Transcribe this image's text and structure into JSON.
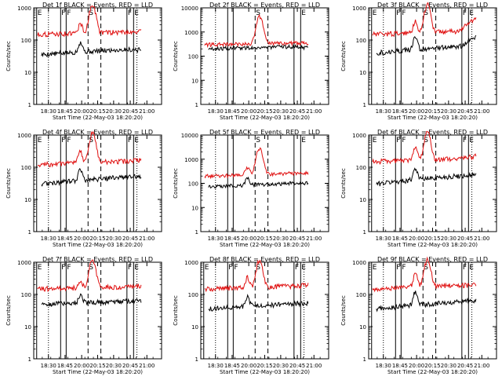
{
  "colors": {
    "black_series": "#000000",
    "red_series": "#e01010",
    "axis": "#000000",
    "background": "#ffffff"
  },
  "chart_data": [
    {
      "type": "line",
      "title": "Det 1f BLACK = Events, RED = LLD",
      "xlabel": "Start Time (22-May-03 18:20:20)",
      "ylabel": "Counts/sec",
      "yscale": "log",
      "ylim": [
        1,
        1000
      ],
      "xlim": [
        "18:20",
        "21:00"
      ],
      "xticks": [
        "18:30",
        "18:45",
        "20:00",
        "20:15",
        "20:30",
        "20:45",
        "21:00"
      ],
      "yticks": [
        "1",
        "10",
        "100",
        "1000"
      ],
      "markers": [
        {
          "label": "E",
          "time": "18:22",
          "style": "solid"
        },
        {
          "label": "",
          "time": "18:30",
          "style": "dotted"
        },
        {
          "label": "F",
          "time": "18:41",
          "style": "solid"
        },
        {
          "label": "F",
          "time": "18:50",
          "style": "solid"
        },
        {
          "label": "S",
          "time": "20:06",
          "style": "dashed"
        },
        {
          "label": "",
          "time": "20:18",
          "style": "dashed"
        },
        {
          "label": "F",
          "time": "20:42",
          "style": "solid"
        },
        {
          "label": "E",
          "time": "20:48",
          "style": "solid"
        },
        {
          "label": "",
          "time": "20:51",
          "style": "dotted"
        }
      ],
      "series": [
        {
          "color": "black",
          "baseline": 35,
          "rise": 40,
          "bump": 1.0,
          "peak": 0,
          "end": 30
        },
        {
          "color": "red",
          "baseline": 150,
          "rise": 70,
          "bump": 1.0,
          "peak": 1100,
          "end": 150
        }
      ]
    },
    {
      "type": "line",
      "title": "Det 2f BLACK = Events, RED = LLD",
      "xlabel": "Start Time (22-May-03 18:20:20)",
      "ylabel": "Counts/sec",
      "yscale": "log",
      "ylim": [
        1,
        10000
      ],
      "xlim": [
        "18:20",
        "21:00"
      ],
      "xticks": [
        "18:30",
        "18:45",
        "20:00",
        "20:15",
        "20:30",
        "20:45",
        "21:00"
      ],
      "yticks": [
        "1",
        "10",
        "100",
        "1000",
        "10000"
      ],
      "markers": [
        {
          "label": "",
          "time": "18:30",
          "style": "dotted"
        },
        {
          "label": "",
          "time": "18:41",
          "style": "solid"
        },
        {
          "label": "",
          "time": "18:50",
          "style": "solid"
        },
        {
          "label": "S",
          "time": "20:06",
          "style": "dashed"
        },
        {
          "label": "",
          "time": "20:18",
          "style": "dashed"
        },
        {
          "label": "",
          "time": "20:42",
          "style": "solid"
        },
        {
          "label": "E",
          "time": "20:48",
          "style": "solid"
        }
      ],
      "series": [
        {
          "color": "black",
          "baseline": 200,
          "rise": 120,
          "bump": 0,
          "peak": 0,
          "end": 150
        },
        {
          "color": "red",
          "baseline": 300,
          "rise": 120,
          "bump": 0,
          "peak": 4000,
          "end": 280
        }
      ]
    },
    {
      "type": "line",
      "title": "Det 3f BLACK = Events, RED = LLD",
      "xlabel": "Start Time (22-May-03 18:20:20)",
      "ylabel": "Counts/sec",
      "yscale": "log",
      "ylim": [
        1,
        1000
      ],
      "xlim": [
        "18:20",
        "21:00"
      ],
      "xticks": [
        "18:30",
        "18:45",
        "20:00",
        "20:15",
        "20:30",
        "20:45",
        "21:00"
      ],
      "yticks": [
        "1",
        "10",
        "100",
        "1000"
      ],
      "markers": [
        {
          "label": "E",
          "time": "18:22",
          "style": "solid"
        },
        {
          "label": "",
          "time": "18:30",
          "style": "dotted"
        },
        {
          "label": "F",
          "time": "18:41",
          "style": "solid"
        },
        {
          "label": "F",
          "time": "18:50",
          "style": "solid"
        },
        {
          "label": "S",
          "time": "20:06",
          "style": "dashed"
        },
        {
          "label": "",
          "time": "20:18",
          "style": "dashed"
        },
        {
          "label": "F",
          "time": "20:42",
          "style": "solid"
        },
        {
          "label": "E",
          "time": "20:48",
          "style": "solid"
        },
        {
          "label": "",
          "time": "20:51",
          "style": "dotted"
        }
      ],
      "series": [
        {
          "color": "black",
          "baseline": 40,
          "rise": 60,
          "bump": 1.3,
          "peak": 0,
          "end": 100
        },
        {
          "color": "red",
          "baseline": 150,
          "rise": 100,
          "bump": 1.3,
          "peak": 1100,
          "end": 600
        }
      ]
    },
    {
      "type": "line",
      "title": "Det 4f BLACK = Events, RED = LLD",
      "xlabel": "Start Time (22-May-03 18:20:20)",
      "ylabel": "Counts/sec",
      "yscale": "log",
      "ylim": [
        1,
        1000
      ],
      "xlim": [
        "18:20",
        "21:00"
      ],
      "xticks": [
        "18:30",
        "18:45",
        "20:00",
        "20:15",
        "20:30",
        "20:45",
        "21:00"
      ],
      "yticks": [
        "1",
        "10",
        "100",
        "1000"
      ],
      "markers": [
        {
          "label": "E",
          "time": "18:22",
          "style": "solid"
        },
        {
          "label": "",
          "time": "18:30",
          "style": "dotted"
        },
        {
          "label": "F",
          "time": "18:41",
          "style": "solid"
        },
        {
          "label": "F",
          "time": "18:50",
          "style": "solid"
        },
        {
          "label": "S",
          "time": "20:06",
          "style": "dashed"
        },
        {
          "label": "",
          "time": "20:18",
          "style": "dashed"
        },
        {
          "label": "F",
          "time": "20:42",
          "style": "solid"
        },
        {
          "label": "E",
          "time": "20:48",
          "style": "solid"
        },
        {
          "label": "",
          "time": "20:51",
          "style": "dotted"
        }
      ],
      "series": [
        {
          "color": "black",
          "baseline": 30,
          "rise": 50,
          "bump": 1.2,
          "peak": 0,
          "end": 30
        },
        {
          "color": "red",
          "baseline": 120,
          "rise": 90,
          "bump": 1.2,
          "peak": 1000,
          "end": 120
        }
      ]
    },
    {
      "type": "line",
      "title": "Det 5f BLACK = Events, RED = LLD",
      "xlabel": "Start Time (22-May-03 18:20:20)",
      "ylabel": "Counts/sec",
      "yscale": "log",
      "ylim": [
        1,
        10000
      ],
      "xlim": [
        "18:20",
        "21:00"
      ],
      "xticks": [
        "18:30",
        "18:45",
        "20:00",
        "20:15",
        "20:30",
        "20:45",
        "21:00"
      ],
      "yticks": [
        "1",
        "10",
        "100",
        "1000",
        "10000"
      ],
      "markers": [
        {
          "label": "",
          "time": "18:30",
          "style": "dotted"
        },
        {
          "label": "",
          "time": "18:41",
          "style": "solid"
        },
        {
          "label": "",
          "time": "18:50",
          "style": "solid"
        },
        {
          "label": "S",
          "time": "20:06",
          "style": "dashed"
        },
        {
          "label": "",
          "time": "20:18",
          "style": "dashed"
        },
        {
          "label": "",
          "time": "20:42",
          "style": "solid"
        },
        {
          "label": "E",
          "time": "20:48",
          "style": "solid"
        }
      ],
      "series": [
        {
          "color": "black",
          "baseline": 70,
          "rise": 80,
          "bump": 1.0,
          "peak": 0,
          "end": 60
        },
        {
          "color": "red",
          "baseline": 200,
          "rise": 150,
          "bump": 1.0,
          "peak": 2500,
          "end": 190
        }
      ]
    },
    {
      "type": "line",
      "title": "Det 6f BLACK = Events, RED = LLD",
      "xlabel": "Start Time (22-May-03 18:20:20)",
      "ylabel": "Counts/sec",
      "yscale": "log",
      "ylim": [
        1,
        1000
      ],
      "xlim": [
        "18:20",
        "21:00"
      ],
      "xticks": [
        "18:30",
        "18:45",
        "20:00",
        "20:15",
        "20:30",
        "20:45",
        "21:00"
      ],
      "yticks": [
        "1",
        "10",
        "100",
        "1000"
      ],
      "markers": [
        {
          "label": "E",
          "time": "18:22",
          "style": "solid"
        },
        {
          "label": "",
          "time": "18:30",
          "style": "dotted"
        },
        {
          "label": "F",
          "time": "18:41",
          "style": "solid"
        },
        {
          "label": "F",
          "time": "18:50",
          "style": "solid"
        },
        {
          "label": "S",
          "time": "20:06",
          "style": "dashed"
        },
        {
          "label": "",
          "time": "20:18",
          "style": "dashed"
        },
        {
          "label": "F",
          "time": "20:42",
          "style": "solid"
        },
        {
          "label": "E",
          "time": "20:48",
          "style": "solid"
        },
        {
          "label": "",
          "time": "20:51",
          "style": "dotted"
        }
      ],
      "series": [
        {
          "color": "black",
          "baseline": 30,
          "rise": 60,
          "bump": 1.3,
          "peak": 0,
          "end": 30
        },
        {
          "color": "red",
          "baseline": 150,
          "rise": 90,
          "bump": 1.3,
          "peak": 1000,
          "end": 200
        }
      ]
    },
    {
      "type": "line",
      "title": "Det 7f BLACK = Events, RED = LLD",
      "xlabel": "Start Time (22-May-03 18:20:20)",
      "ylabel": "Counts/sec",
      "yscale": "log",
      "ylim": [
        1,
        1000
      ],
      "xlim": [
        "18:20",
        "21:00"
      ],
      "xticks": [
        "18:30",
        "18:45",
        "20:00",
        "20:15",
        "20:30",
        "20:45",
        "21:00"
      ],
      "yticks": [
        "1",
        "10",
        "100",
        "1000"
      ],
      "markers": [
        {
          "label": "E",
          "time": "18:22",
          "style": "solid"
        },
        {
          "label": "",
          "time": "18:30",
          "style": "dotted"
        },
        {
          "label": "F",
          "time": "18:41",
          "style": "solid"
        },
        {
          "label": "F",
          "time": "18:50",
          "style": "solid"
        },
        {
          "label": "S",
          "time": "20:06",
          "style": "dashed"
        },
        {
          "label": "",
          "time": "20:18",
          "style": "dashed"
        },
        {
          "label": "F",
          "time": "20:42",
          "style": "solid"
        },
        {
          "label": "E",
          "time": "20:48",
          "style": "solid"
        },
        {
          "label": "",
          "time": "20:51",
          "style": "dotted"
        }
      ],
      "series": [
        {
          "color": "black",
          "baseline": 50,
          "rise": 30,
          "bump": 0.6,
          "peak": 0,
          "end": 50
        },
        {
          "color": "red",
          "baseline": 150,
          "rise": 60,
          "bump": 0.6,
          "peak": 1000,
          "end": 160
        }
      ]
    },
    {
      "type": "line",
      "title": "Det 8f BLACK = Events, RED = LLD",
      "xlabel": "Start Time (22-May-03 18:20:20)",
      "ylabel": "Counts/sec",
      "yscale": "log",
      "ylim": [
        1,
        1000
      ],
      "xlim": [
        "18:20",
        "21:00"
      ],
      "xticks": [
        "18:30",
        "18:45",
        "20:00",
        "20:15",
        "20:30",
        "20:45",
        "21:00"
      ],
      "yticks": [
        "1",
        "10",
        "100",
        "1000"
      ],
      "markers": [
        {
          "label": "E",
          "time": "18:22",
          "style": "solid"
        },
        {
          "label": "",
          "time": "18:30",
          "style": "dotted"
        },
        {
          "label": "F",
          "time": "18:41",
          "style": "solid"
        },
        {
          "label": "F",
          "time": "18:50",
          "style": "solid"
        },
        {
          "label": "S",
          "time": "20:06",
          "style": "dashed"
        },
        {
          "label": "",
          "time": "20:18",
          "style": "dashed"
        },
        {
          "label": "F",
          "time": "20:42",
          "style": "solid"
        },
        {
          "label": "E",
          "time": "20:48",
          "style": "solid"
        },
        {
          "label": "",
          "time": "20:51",
          "style": "dotted"
        }
      ],
      "series": [
        {
          "color": "black",
          "baseline": 35,
          "rise": 40,
          "bump": 1.0,
          "peak": 0,
          "end": 35
        },
        {
          "color": "red",
          "baseline": 150,
          "rise": 80,
          "bump": 1.0,
          "peak": 1000,
          "end": 160
        }
      ]
    },
    {
      "type": "line",
      "title": "Det 9f BLACK = Events, RED = LLD",
      "xlabel": "Start Time (22-May-03 18:20:20)",
      "ylabel": "Counts/sec",
      "yscale": "log",
      "ylim": [
        1,
        1000
      ],
      "xlim": [
        "18:20",
        "21:00"
      ],
      "xticks": [
        "18:30",
        "18:45",
        "20:00",
        "20:15",
        "20:30",
        "20:45",
        "21:00"
      ],
      "yticks": [
        "1",
        "10",
        "100",
        "1000"
      ],
      "markers": [
        {
          "label": "E",
          "time": "18:22",
          "style": "solid"
        },
        {
          "label": "",
          "time": "18:30",
          "style": "dotted"
        },
        {
          "label": "F",
          "time": "18:41",
          "style": "solid"
        },
        {
          "label": "F",
          "time": "18:50",
          "style": "solid"
        },
        {
          "label": "S",
          "time": "20:06",
          "style": "dashed"
        },
        {
          "label": "",
          "time": "20:18",
          "style": "dashed"
        },
        {
          "label": "F",
          "time": "20:42",
          "style": "solid"
        },
        {
          "label": "E",
          "time": "20:48",
          "style": "solid"
        },
        {
          "label": "",
          "time": "20:51",
          "style": "dotted"
        }
      ],
      "series": [
        {
          "color": "black",
          "baseline": 35,
          "rise": 60,
          "bump": 1.6,
          "peak": 0,
          "end": 40
        },
        {
          "color": "red",
          "baseline": 150,
          "rise": 100,
          "bump": 1.6,
          "peak": 1000,
          "end": 150
        }
      ]
    }
  ]
}
